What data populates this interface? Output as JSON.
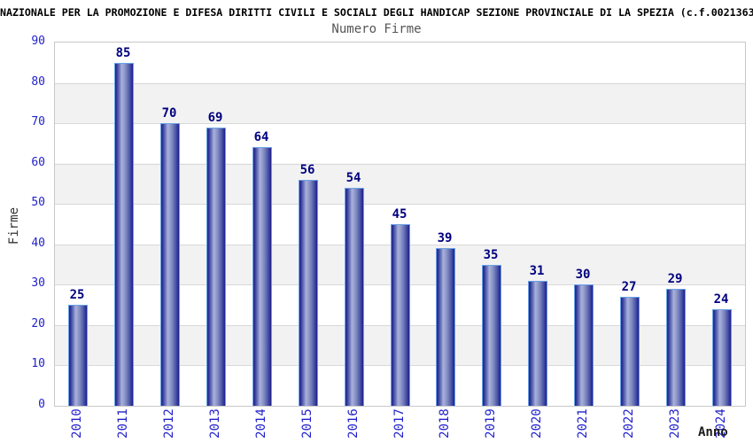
{
  "header": {
    "title": "NAZIONALE PER LA PROMOZIONE E DIFESA DIRITTI CIVILI E SOCIALI DEGLI HANDICAP SEZIONE PROVINCIALE DI LA SPEZIA (c.f.0021363"
  },
  "chart_data": {
    "type": "bar",
    "title": "Numero Firme",
    "xlabel": "Anno",
    "ylabel": "Firme",
    "categories": [
      "2010",
      "2011",
      "2012",
      "2013",
      "2014",
      "2015",
      "2016",
      "2017",
      "2018",
      "2019",
      "2020",
      "2021",
      "2022",
      "2023",
      "2024"
    ],
    "values": [
      25,
      85,
      70,
      69,
      64,
      56,
      54,
      45,
      39,
      35,
      31,
      30,
      27,
      29,
      24
    ],
    "y_ticks": [
      0,
      10,
      20,
      30,
      40,
      50,
      60,
      70,
      80,
      90
    ],
    "ylim": [
      0,
      90
    ],
    "grid": "horizontal",
    "legend": "none",
    "colors": {
      "axis_label_blue": "#2222cc",
      "value_label_navy": "#000080",
      "bar_dark": "#23238e",
      "bar_light": "#a9b0da",
      "bar_outline": "#69a1e6",
      "band_gray": "#f2f2f2",
      "plot_border": "#c8c8c8",
      "gridline": "#d9d9d9",
      "title_gray": "#555555"
    }
  }
}
